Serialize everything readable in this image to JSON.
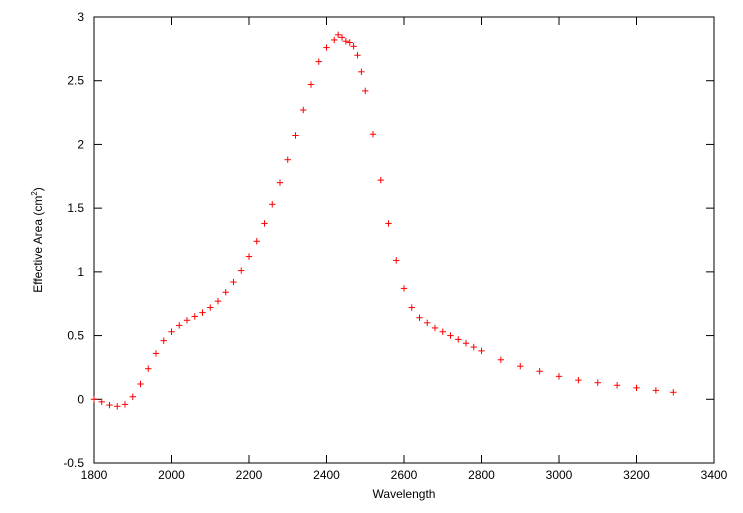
{
  "chart_data": {
    "type": "scatter",
    "title": "",
    "xlabel": "Wavelength",
    "ylabel_main": "Effective Area (cm",
    "ylabel_sup": "2",
    "ylabel_end": ")",
    "xlim": [
      1800,
      3400
    ],
    "ylim": [
      -0.5,
      3
    ],
    "xticks": [
      "1800",
      "2000",
      "2200",
      "2400",
      "2600",
      "2800",
      "3000",
      "3200",
      "3400"
    ],
    "yticks": [
      "-0.5",
      "0",
      "0.5",
      "1",
      "1.5",
      "2",
      "2.5",
      "3"
    ],
    "grid": false,
    "legend": "none",
    "marker": "+",
    "color": "#ff0000",
    "series": [
      {
        "x": [
          1800,
          1820,
          1840,
          1860,
          1880,
          1900,
          1920,
          1940,
          1960,
          1980,
          2000,
          2020,
          2040,
          2060,
          2080,
          2100,
          2120,
          2140,
          2160,
          2180,
          2200,
          2220,
          2240,
          2260,
          2280,
          2300,
          2320,
          2340,
          2360,
          2380,
          2400,
          2420,
          2430,
          2440,
          2450,
          2460,
          2470,
          2480,
          2490,
          2500,
          2520,
          2540,
          2560,
          2580,
          2600,
          2620,
          2640,
          2660,
          2680,
          2700,
          2720,
          2740,
          2760,
          2780,
          2800,
          2850,
          2900,
          2950,
          3000,
          3050,
          3100,
          3150,
          3200,
          3250,
          3295
        ],
        "y": [
          0.0,
          -0.02,
          -0.045,
          -0.055,
          -0.04,
          0.02,
          0.12,
          0.24,
          0.36,
          0.46,
          0.53,
          0.58,
          0.62,
          0.65,
          0.68,
          0.72,
          0.77,
          0.84,
          0.92,
          1.01,
          1.12,
          1.24,
          1.38,
          1.53,
          1.7,
          1.88,
          2.07,
          2.27,
          2.47,
          2.65,
          2.76,
          2.82,
          2.86,
          2.84,
          2.81,
          2.8,
          2.77,
          2.7,
          2.57,
          2.42,
          2.08,
          1.72,
          1.38,
          1.09,
          0.87,
          0.72,
          0.64,
          0.6,
          0.56,
          0.53,
          0.5,
          0.47,
          0.44,
          0.41,
          0.38,
          0.31,
          0.26,
          0.22,
          0.18,
          0.15,
          0.13,
          0.11,
          0.09,
          0.07,
          0.055
        ]
      }
    ]
  }
}
